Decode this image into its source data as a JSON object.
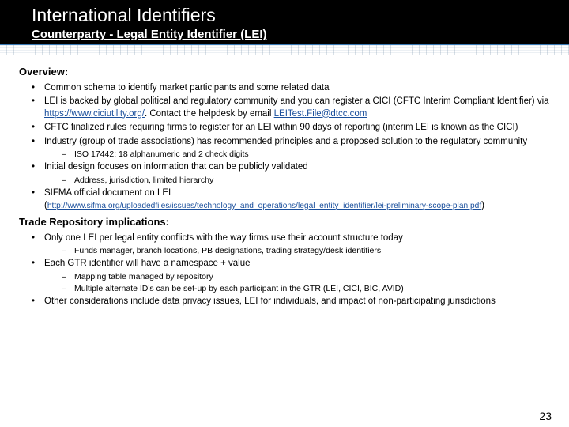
{
  "header": {
    "title": "International Identifiers",
    "subtitle": "Counterparty - Legal Entity Identifier (LEI)"
  },
  "overview": {
    "heading": "Overview:",
    "b1": "Common schema to identify market participants and some related data",
    "b2a": "LEI is backed by global political and regulatory community and you can register a CICI (CFTC Interim Compliant Identifier) via ",
    "b2_link1": "https://www.ciciutility.org/",
    "b2b": ". Contact the helpdesk by email ",
    "b2_link2": "LEITest.File@dtcc.com",
    "b3": "CFTC finalized rules requiring firms to register for an LEI within 90 days of reporting (interim LEI is known as the CICI)",
    "b4": "Industry (group of trade associations) has recommended principles and a proposed solution to the regulatory community",
    "b4_sub1": "ISO 17442:  18 alphanumeric and 2 check digits",
    "b5": "Initial design focuses on information that can be publicly validated",
    "b5_sub1": "Address, jurisdiction, limited hierarchy",
    "b6": "SIFMA official document on LEI",
    "b6_linkwrap_a": "(",
    "b6_link": "http://www.sifma.org/uploadedfiles/issues/technology_and_operations/legal_entity_identifier/lei-preliminary-scope-plan.pdf",
    "b6_linkwrap_b": ")"
  },
  "trade": {
    "heading": "Trade Repository implications:",
    "b1": "Only one LEI per legal entity conflicts with the way firms use their account structure today",
    "b1_sub1": "Funds manager, branch locations, PB designations, trading strategy/desk identifiers",
    "b2": "Each GTR identifier will have a namespace + value",
    "b2_sub1": "Mapping table managed by repository",
    "b2_sub2": "Multiple alternate ID's can be set-up by each participant in the GTR (LEI, CICI, BIC, AVID)",
    "b3": "Other considerations include data privacy issues, LEI for individuals, and impact of non-participating jurisdictions"
  },
  "page_number": "23"
}
